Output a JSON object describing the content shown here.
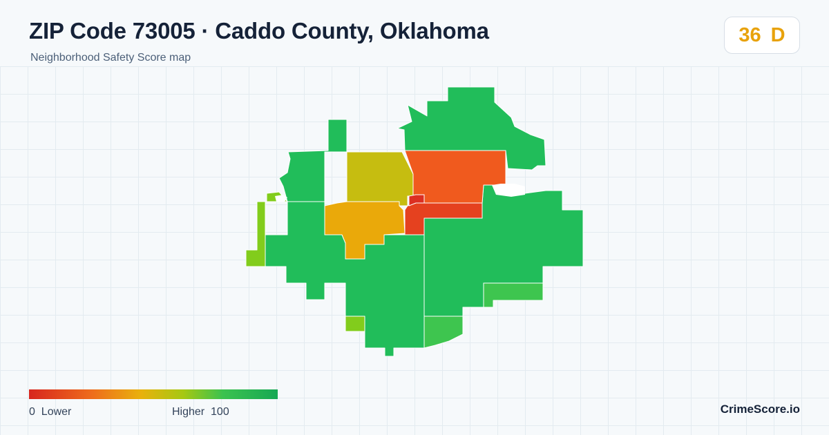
{
  "header": {
    "title": "ZIP Code 73005 · Caddo County, Oklahoma",
    "subtitle": "Neighborhood Safety Score map"
  },
  "score": {
    "value": "36",
    "grade": "D",
    "color": "#e8a20b"
  },
  "legend": {
    "min_label": "0  Lower",
    "max_label": "Higher  100",
    "colors": [
      "#d7261e",
      "#ee6b1c",
      "#e9b10c",
      "#a6c812",
      "#3bc24f",
      "#17a854"
    ]
  },
  "brand": "CrimeScore.io",
  "map": {
    "region_colors": {
      "safe": "#21bd5a",
      "mid_high": "#3ec54f",
      "lime": "#82cc1c",
      "yellow": "#c6bd10",
      "orange": "#eaa90a",
      "red_orange": "#f05a1e",
      "red": "#e5411f",
      "deep_red": "#dc2f22"
    }
  }
}
